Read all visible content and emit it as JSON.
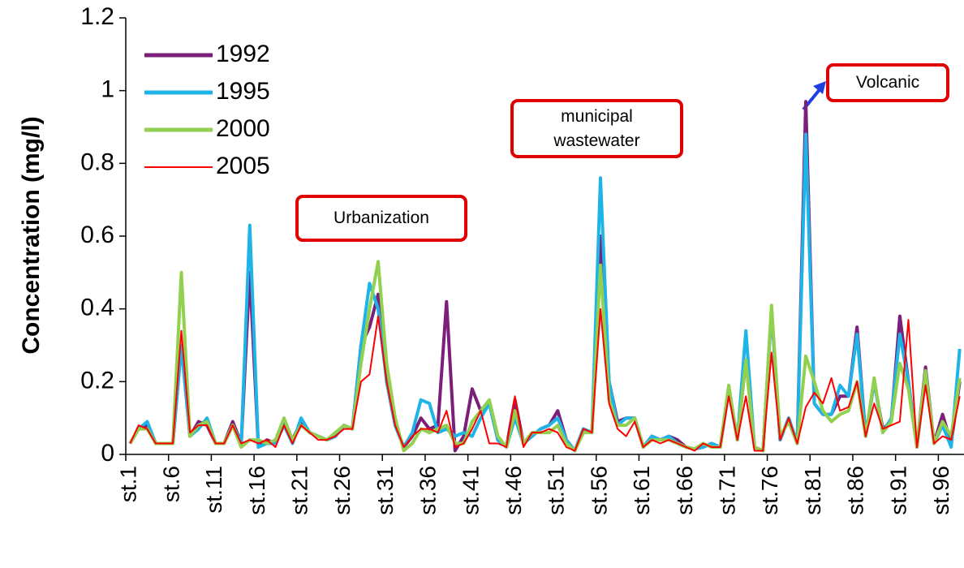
{
  "chart_data": {
    "type": "line",
    "y_label": "Concentration (mg/l)",
    "annotations": [
      "Urbanization",
      "municipal wastewater",
      "Volcanic"
    ],
    "categories": [
      "st.1",
      null,
      null,
      null,
      null,
      "st.6",
      null,
      null,
      null,
      null,
      "st.11",
      null,
      null,
      null,
      null,
      "st.16",
      null,
      null,
      null,
      null,
      "st.21",
      null,
      null,
      null,
      null,
      "st.26",
      null,
      null,
      null,
      null,
      "st.31",
      null,
      null,
      null,
      null,
      "st.36",
      null,
      null,
      null,
      null,
      "st.41",
      null,
      null,
      null,
      null,
      "st.46",
      null,
      null,
      null,
      null,
      "st.51",
      null,
      null,
      null,
      null,
      "st.56",
      null,
      null,
      null,
      null,
      "st.61",
      null,
      null,
      null,
      null,
      "st.66",
      null,
      null,
      null,
      null,
      "st.71",
      null,
      null,
      null,
      null,
      "st.76",
      null,
      null,
      null,
      null,
      "st.81",
      null,
      null,
      null,
      null,
      "st.86",
      null,
      null,
      null,
      null,
      "st.91",
      null,
      null,
      null,
      null,
      "st.96",
      null,
      null
    ],
    "ylim": [
      0,
      1.2
    ],
    "yticks": [
      0,
      0.2,
      0.4,
      0.6,
      0.8,
      1,
      1.2
    ],
    "legend": "top-left",
    "series": [
      {
        "name": "1992",
        "color": "#7b1f7b",
        "values": [
          0.03,
          0.07,
          0.08,
          0.03,
          0.03,
          0.03,
          0.3,
          0.05,
          0.09,
          0.08,
          0.03,
          0.03,
          0.09,
          0.03,
          0.5,
          0.02,
          0.04,
          0.03,
          0.09,
          0.04,
          0.09,
          0.06,
          0.05,
          0.04,
          0.05,
          0.08,
          0.07,
          0.3,
          0.35,
          0.44,
          0.2,
          0.08,
          0.02,
          0.05,
          0.1,
          0.07,
          0.08,
          0.42,
          0.01,
          0.05,
          0.18,
          0.12,
          0.14,
          0.04,
          0.02,
          0.15,
          0.03,
          0.05,
          0.07,
          0.08,
          0.12,
          0.04,
          0.01,
          0.07,
          0.06,
          0.6,
          0.2,
          0.09,
          0.1,
          0.1,
          0.02,
          0.05,
          0.04,
          0.05,
          0.04,
          0.02,
          0.015,
          0.02,
          0.03,
          0.02,
          0.18,
          0.04,
          0.26,
          0.02,
          0.01,
          0.4,
          0.04,
          0.1,
          0.03,
          0.97,
          0.14,
          0.11,
          0.11,
          0.16,
          0.16,
          0.35,
          0.05,
          0.2,
          0.07,
          0.09,
          0.38,
          0.2,
          0.02,
          0.24,
          0.03,
          0.11,
          0.03,
          0.2
        ]
      },
      {
        "name": "1995",
        "color": "#1fb4e8",
        "values": [
          0.03,
          0.07,
          0.09,
          0.03,
          0.03,
          0.03,
          0.3,
          0.05,
          0.07,
          0.1,
          0.03,
          0.03,
          0.08,
          0.03,
          0.63,
          0.02,
          0.03,
          0.03,
          0.08,
          0.03,
          0.1,
          0.06,
          0.05,
          0.04,
          0.05,
          0.08,
          0.07,
          0.3,
          0.47,
          0.4,
          0.2,
          0.08,
          0.02,
          0.06,
          0.15,
          0.14,
          0.06,
          0.07,
          0.05,
          0.06,
          0.05,
          0.1,
          0.14,
          0.04,
          0.02,
          0.1,
          0.03,
          0.05,
          0.07,
          0.08,
          0.1,
          0.04,
          0.01,
          0.07,
          0.06,
          0.76,
          0.2,
          0.08,
          0.1,
          0.1,
          0.02,
          0.05,
          0.04,
          0.05,
          0.03,
          0.02,
          0.015,
          0.02,
          0.03,
          0.02,
          0.18,
          0.04,
          0.34,
          0.02,
          0.01,
          0.4,
          0.04,
          0.1,
          0.03,
          0.88,
          0.14,
          0.11,
          0.11,
          0.19,
          0.16,
          0.33,
          0.05,
          0.2,
          0.06,
          0.1,
          0.33,
          0.2,
          0.02,
          0.22,
          0.03,
          0.08,
          0.02,
          0.29
        ]
      },
      {
        "name": "2000",
        "color": "#92d050",
        "values": [
          0.03,
          0.07,
          0.07,
          0.03,
          0.03,
          0.03,
          0.5,
          0.05,
          0.08,
          0.09,
          0.03,
          0.03,
          0.08,
          0.02,
          0.04,
          0.04,
          0.03,
          0.04,
          0.1,
          0.04,
          0.08,
          0.06,
          0.05,
          0.04,
          0.06,
          0.08,
          0.07,
          0.25,
          0.4,
          0.53,
          0.25,
          0.1,
          0.01,
          0.03,
          0.07,
          0.06,
          0.07,
          0.08,
          0.03,
          0.03,
          0.09,
          0.12,
          0.15,
          0.05,
          0.02,
          0.12,
          0.03,
          0.06,
          0.06,
          0.06,
          0.08,
          0.03,
          0.01,
          0.06,
          0.06,
          0.52,
          0.15,
          0.08,
          0.08,
          0.1,
          0.02,
          0.04,
          0.04,
          0.04,
          0.03,
          0.02,
          0.015,
          0.03,
          0.02,
          0.02,
          0.19,
          0.04,
          0.26,
          0.02,
          0.01,
          0.41,
          0.05,
          0.09,
          0.03,
          0.27,
          0.2,
          0.12,
          0.09,
          0.11,
          0.12,
          0.2,
          0.05,
          0.21,
          0.06,
          0.09,
          0.25,
          0.18,
          0.02,
          0.23,
          0.03,
          0.09,
          0.05,
          0.21
        ]
      },
      {
        "name": "2005",
        "color": "#ff0000",
        "values": [
          0.03,
          0.08,
          0.07,
          0.03,
          0.03,
          0.03,
          0.34,
          0.06,
          0.08,
          0.08,
          0.03,
          0.03,
          0.08,
          0.03,
          0.04,
          0.03,
          0.04,
          0.02,
          0.08,
          0.03,
          0.08,
          0.06,
          0.04,
          0.04,
          0.05,
          0.07,
          0.07,
          0.2,
          0.22,
          0.38,
          0.2,
          0.08,
          0.02,
          0.05,
          0.07,
          0.07,
          0.06,
          0.12,
          0.02,
          0.03,
          0.07,
          0.12,
          0.03,
          0.03,
          0.02,
          0.16,
          0.02,
          0.06,
          0.06,
          0.07,
          0.06,
          0.02,
          0.01,
          0.07,
          0.06,
          0.4,
          0.14,
          0.07,
          0.05,
          0.09,
          0.02,
          0.04,
          0.03,
          0.04,
          0.03,
          0.02,
          0.01,
          0.03,
          0.02,
          0.02,
          0.16,
          0.04,
          0.16,
          0.01,
          0.01,
          0.28,
          0.04,
          0.1,
          0.03,
          0.13,
          0.17,
          0.14,
          0.21,
          0.12,
          0.13,
          0.2,
          0.05,
          0.14,
          0.07,
          0.08,
          0.09,
          0.37,
          0.02,
          0.19,
          0.03,
          0.05,
          0.04,
          0.16
        ]
      }
    ]
  }
}
